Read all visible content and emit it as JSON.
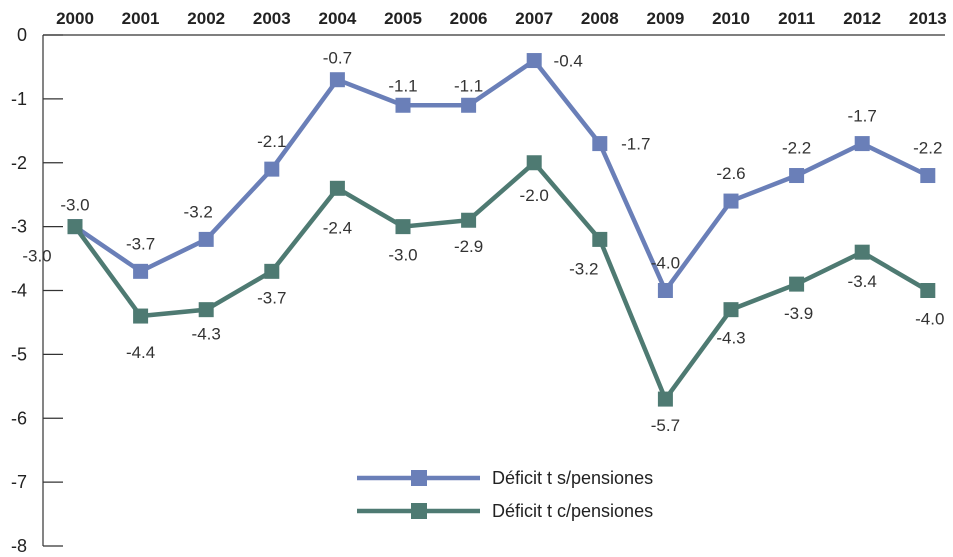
{
  "chart_data": {
    "type": "line",
    "x": [
      "2000",
      "2001",
      "2002",
      "2003",
      "2004",
      "2005",
      "2006",
      "2007",
      "2008",
      "2009",
      "2010",
      "2011",
      "2012",
      "2013"
    ],
    "ylim": [
      -8,
      0
    ],
    "yticks": [
      "0",
      "-1",
      "-2",
      "-3",
      "-4",
      "-5",
      "-6",
      "-7",
      "-8"
    ],
    "grid": false,
    "legend_position": "bottom-center",
    "series": [
      {
        "name": "Déficit t s/pensiones",
        "color": "#6a7fb8",
        "values": [
          -3.0,
          -3.7,
          -3.2,
          -2.1,
          -0.7,
          -1.1,
          -1.1,
          -0.4,
          -1.7,
          -4.0,
          -2.6,
          -2.2,
          -1.7,
          -2.2
        ],
        "labels": [
          "-3.0",
          "-3.7",
          "-3.2",
          "-2.1",
          "-0.7",
          "-1.1",
          "-1.1",
          "-0.4",
          "-1.7",
          "-4.0",
          "-2.6",
          "-2.2",
          "-1.7",
          "-2.2"
        ]
      },
      {
        "name": "Déficit t c/pensiones",
        "color": "#4e7a72",
        "values": [
          -3.0,
          -4.4,
          -4.3,
          -3.7,
          -2.4,
          -3.0,
          -2.9,
          -2.0,
          -3.2,
          -5.7,
          -4.3,
          -3.9,
          -3.4,
          -4.0
        ],
        "labels": [
          "-3.0",
          "-4.4",
          "-4.3",
          "-3.7",
          "-2.4",
          "-3.0",
          "-2.9",
          "-2.0",
          "-3.2",
          "-5.7",
          "-4.3",
          "-3.9",
          "-3.4",
          "-4.0"
        ]
      }
    ]
  }
}
